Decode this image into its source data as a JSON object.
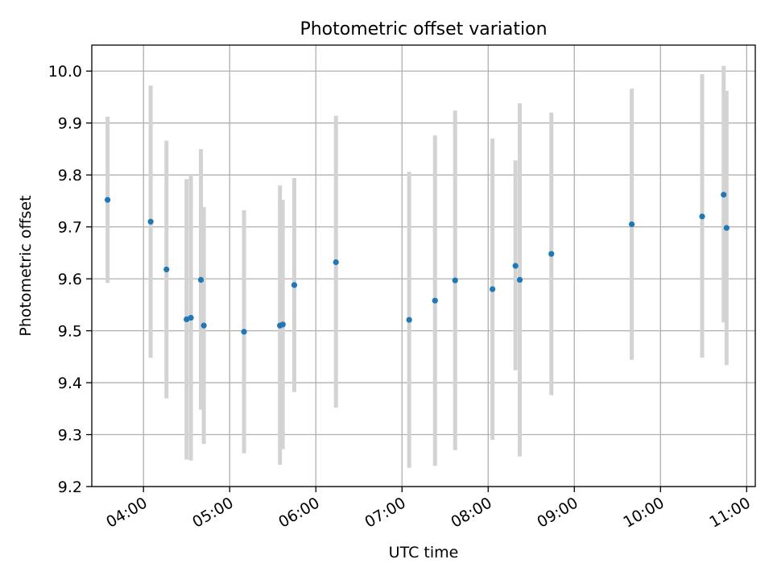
{
  "chart_data": {
    "type": "scatter",
    "title": "Photometric offset variation",
    "xlabel": "UTC time",
    "ylabel": "Photometric offset",
    "x_tick_labels": [
      "04:00",
      "05:00",
      "06:00",
      "07:00",
      "08:00",
      "09:00",
      "10:00",
      "11:00"
    ],
    "y_tick_labels": [
      "9.2",
      "9.3",
      "9.4",
      "9.5",
      "9.6",
      "9.7",
      "9.8",
      "9.9",
      "10.0"
    ],
    "xlim": [
      "03:24",
      "11:06"
    ],
    "ylim": [
      9.2,
      10.05
    ],
    "grid": true,
    "marker_color": "#1f77b4",
    "errorbar_color": "#d3d3d3",
    "points": [
      {
        "time": "03:35",
        "y": 9.752,
        "low": 9.592,
        "high": 9.912
      },
      {
        "time": "04:05",
        "y": 9.71,
        "low": 9.448,
        "high": 9.972
      },
      {
        "time": "04:16",
        "y": 9.618,
        "low": 9.37,
        "high": 9.866
      },
      {
        "time": "04:30",
        "y": 9.522,
        "low": 9.252,
        "high": 9.792
      },
      {
        "time": "04:33",
        "y": 9.525,
        "low": 9.25,
        "high": 9.802
      },
      {
        "time": "04:40",
        "y": 9.598,
        "low": 9.348,
        "high": 9.85
      },
      {
        "time": "04:42",
        "y": 9.51,
        "low": 9.282,
        "high": 9.738
      },
      {
        "time": "05:10",
        "y": 9.498,
        "low": 9.264,
        "high": 9.732
      },
      {
        "time": "05:35",
        "y": 9.51,
        "low": 9.242,
        "high": 9.78
      },
      {
        "time": "05:37",
        "y": 9.512,
        "low": 9.272,
        "high": 9.752
      },
      {
        "time": "05:45",
        "y": 9.588,
        "low": 9.382,
        "high": 9.794
      },
      {
        "time": "06:14",
        "y": 9.632,
        "low": 9.352,
        "high": 9.914
      },
      {
        "time": "07:05",
        "y": 9.521,
        "low": 9.236,
        "high": 9.806
      },
      {
        "time": "07:23",
        "y": 9.558,
        "low": 9.24,
        "high": 9.876
      },
      {
        "time": "07:37",
        "y": 9.597,
        "low": 9.27,
        "high": 9.924
      },
      {
        "time": "08:03",
        "y": 9.58,
        "low": 9.29,
        "high": 9.87
      },
      {
        "time": "08:19",
        "y": 9.625,
        "low": 9.424,
        "high": 9.828
      },
      {
        "time": "08:22",
        "y": 9.598,
        "low": 9.258,
        "high": 9.938
      },
      {
        "time": "08:44",
        "y": 9.648,
        "low": 9.376,
        "high": 9.92
      },
      {
        "time": "09:40",
        "y": 9.705,
        "low": 9.444,
        "high": 9.966
      },
      {
        "time": "10:29",
        "y": 9.72,
        "low": 9.448,
        "high": 9.994
      },
      {
        "time": "10:44",
        "y": 9.762,
        "low": 9.516,
        "high": 10.01
      },
      {
        "time": "10:46",
        "y": 9.698,
        "low": 9.434,
        "high": 9.962
      }
    ]
  }
}
